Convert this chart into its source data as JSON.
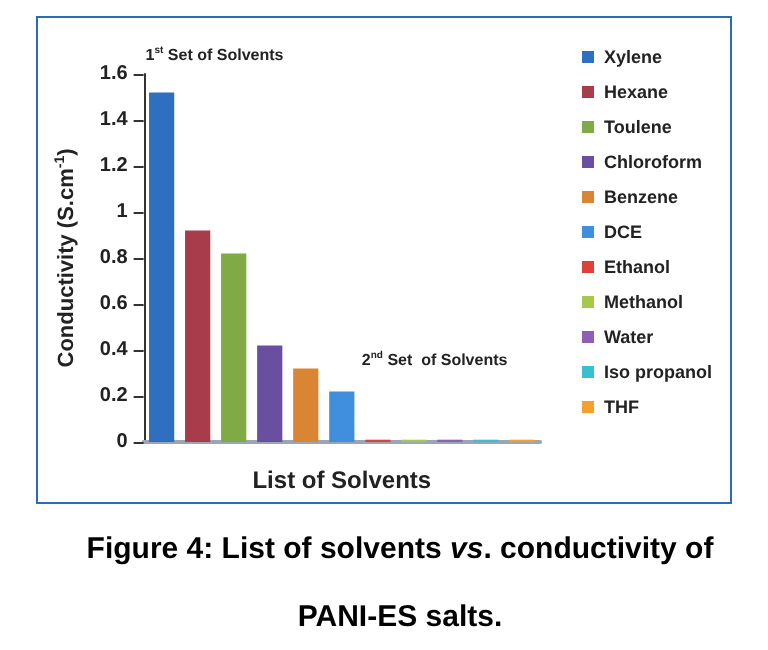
{
  "chart_data": {
    "type": "bar",
    "title": "Figure 4: List of solvents vs. conductivity of PANI-ES salts.",
    "xlabel": "List of Solvents",
    "ylabel": "Conductivity (S.cm$^{-1}$)",
    "categories": [
      null,
      null,
      null,
      null,
      null,
      null,
      null,
      null,
      null,
      null,
      null
    ],
    "series": [
      {
        "name": "Xylene",
        "color": "#2e6fc0",
        "values": [
          1.52,
          null,
          null,
          null,
          null,
          null,
          null,
          null,
          null,
          null,
          null
        ]
      },
      {
        "name": "Hexane",
        "color": "#a83c4a",
        "values": [
          null,
          0.92,
          null,
          null,
          null,
          null,
          null,
          null,
          null,
          null,
          null
        ]
      },
      {
        "name": "Toulene",
        "color": "#7faa46",
        "values": [
          null,
          null,
          0.82,
          null,
          null,
          null,
          null,
          null,
          null,
          null,
          null
        ]
      },
      {
        "name": "Chloroform",
        "color": "#6a4ea0",
        "values": [
          null,
          null,
          null,
          0.42,
          null,
          null,
          null,
          null,
          null,
          null,
          null
        ]
      },
      {
        "name": "Benzene",
        "color": "#d98533",
        "values": [
          null,
          null,
          null,
          null,
          0.32,
          null,
          null,
          null,
          null,
          null,
          null
        ]
      },
      {
        "name": "DCE",
        "color": "#3f8fdc",
        "values": [
          null,
          null,
          null,
          null,
          null,
          0.22,
          null,
          null,
          null,
          null,
          null
        ]
      },
      {
        "name": "Ethanol",
        "color": "#e0403a",
        "values": [
          null,
          null,
          null,
          null,
          null,
          null,
          0.01,
          null,
          null,
          null,
          null
        ]
      },
      {
        "name": "Methanol",
        "color": "#a8c84a",
        "values": [
          null,
          null,
          null,
          null,
          null,
          null,
          null,
          0.01,
          null,
          null,
          null
        ]
      },
      {
        "name": "Water",
        "color": "#8e5fb5",
        "values": [
          null,
          null,
          null,
          null,
          null,
          null,
          null,
          null,
          0.01,
          null,
          null
        ]
      },
      {
        "name": "Iso propanol",
        "color": "#36c0d0",
        "values": [
          null,
          null,
          null,
          null,
          null,
          null,
          null,
          null,
          null,
          0.01,
          null
        ]
      },
      {
        "name": "THF",
        "color": "#f5a02a",
        "values": [
          null,
          null,
          null,
          null,
          null,
          null,
          null,
          null,
          null,
          null,
          0.01
        ]
      }
    ],
    "ylim": [
      0,
      1.6
    ],
    "yticks": [
      0,
      0.2,
      0.4,
      0.6,
      0.8,
      1,
      1.2,
      1.4,
      1.6
    ],
    "grid": false,
    "legend": "right",
    "annotations": [
      "1$^{st}$ Set of Solvents",
      "2$^{nd}$ Set  of Solvents"
    ]
  }
}
